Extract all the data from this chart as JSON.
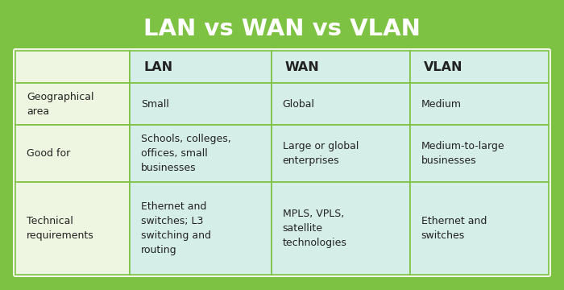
{
  "title": "LAN vs WAN vs VLAN",
  "green_bg": "#7dc242",
  "col0_bg": "#eef5e0",
  "col_data_bg": "#d6eee8",
  "border_color": "#7dc242",
  "text_color": "#222222",
  "title_text_color": "#ffffff",
  "col_headers": [
    "",
    "LAN",
    "WAN",
    "VLAN"
  ],
  "rows": [
    {
      "label": "Geographical\narea",
      "cells": [
        "Small",
        "Global",
        "Medium"
      ]
    },
    {
      "label": "Good for",
      "cells": [
        "Schools, colleges,\noffices, small\nbusinesses",
        "Large or global\nenterprises",
        "Medium-to-large\nbusinesses"
      ]
    },
    {
      "label": "Technical\nrequirements",
      "cells": [
        "Ethernet and\nswitches; L3\nswitching and\nrouting",
        "MPLS, VPLS,\nsatellite\ntechnologies",
        "Ethernet and\nswitches"
      ]
    }
  ],
  "figsize": [
    7.0,
    3.6
  ],
  "dpi": 100
}
